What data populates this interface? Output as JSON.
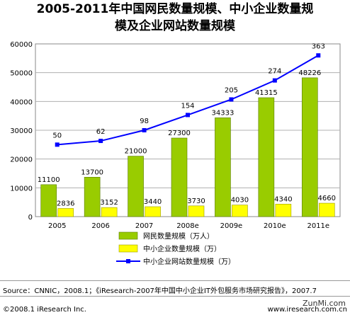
{
  "title": {
    "line1": "2005-2011年中国网民数量规模、中小企业数量规",
    "line2": "模及企业网站数量规模"
  },
  "chart_data": {
    "type": "bar",
    "categories": [
      "2005",
      "2006",
      "2007",
      "2008e",
      "2009e",
      "2010e",
      "2011e"
    ],
    "ylim": [
      0,
      60000
    ],
    "yticks": [
      "0",
      "10000",
      "20000",
      "30000",
      "40000",
      "50000",
      "60000"
    ],
    "series": [
      {
        "name": "网民数量规模（万人）",
        "kind": "bar",
        "color": "#99cc00",
        "values": [
          11100,
          13700,
          21000,
          27300,
          34333,
          41315,
          48226
        ]
      },
      {
        "name": "中小企业数量规模（万）",
        "kind": "bar",
        "color": "#ffff00",
        "values": [
          2836,
          3152,
          3440,
          3730,
          4030,
          4340,
          4660
        ]
      },
      {
        "name": "中小企业网站数量规模（万）",
        "kind": "line",
        "color": "#0000ff",
        "values": [
          50,
          62,
          98,
          154,
          205,
          274,
          363
        ],
        "plotted_on_left_axis": [
          25000,
          26300,
          30000,
          35300,
          40700,
          47300,
          56000
        ]
      }
    ],
    "legend": "bottom",
    "grid": true
  },
  "footer": {
    "source": "Source：CNNIC，2008.1；《iResearch-2007年中国中小企业IT外包服务市场研究报告》，2007.7",
    "copyright": "©2008.1 iResearch Inc.",
    "site": "www.iresearch.com.cn",
    "watermark": "ZunMi.com"
  }
}
